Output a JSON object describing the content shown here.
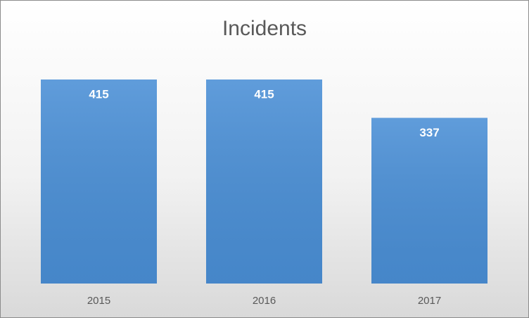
{
  "chart_data": {
    "type": "bar",
    "title": "Incidents",
    "categories": [
      "2015",
      "2016",
      "2017"
    ],
    "values": [
      415,
      415,
      337
    ],
    "color": "#4a8fd6"
  }
}
